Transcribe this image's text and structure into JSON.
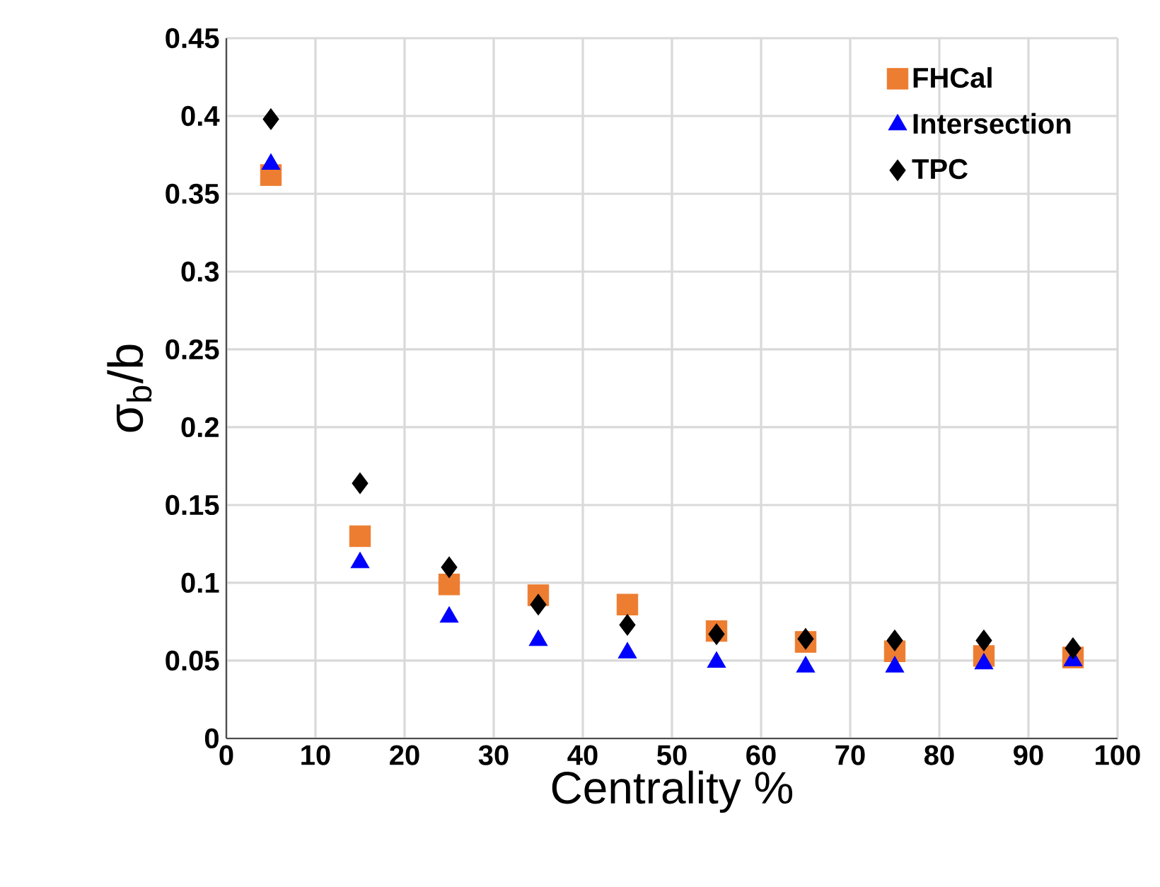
{
  "chart_data": {
    "type": "scatter",
    "xlabel": "Centrality %",
    "ylabel": "σ$_{b}$/b",
    "x": [
      5,
      15,
      25,
      35,
      45,
      55,
      65,
      75,
      85,
      95
    ],
    "series": [
      {
        "name": "FHCal",
        "color": "#ed7d31",
        "marker": "square",
        "values": [
          0.362,
          0.13,
          0.099,
          0.092,
          0.086,
          0.069,
          0.062,
          0.056,
          0.053,
          0.052
        ]
      },
      {
        "name": "Intersection",
        "color": "#0000ff",
        "marker": "triangle",
        "values": [
          0.369,
          0.113,
          0.078,
          0.063,
          0.055,
          0.049,
          0.046,
          0.046,
          0.048,
          0.05
        ]
      },
      {
        "name": "TPC",
        "color": "#000000",
        "marker": "diamond",
        "values": [
          0.398,
          0.164,
          0.11,
          0.086,
          0.073,
          0.067,
          0.064,
          0.063,
          0.063,
          0.058
        ]
      }
    ],
    "xlim": [
      0,
      100
    ],
    "ylim": [
      0,
      0.45
    ],
    "xticks": [
      0,
      10,
      20,
      30,
      40,
      50,
      60,
      70,
      80,
      90,
      100
    ],
    "yticks": [
      0,
      0.05,
      0.1,
      0.15,
      0.2,
      0.25,
      0.3,
      0.35,
      0.4,
      0.45
    ],
    "grid": true,
    "legend": "top right"
  }
}
